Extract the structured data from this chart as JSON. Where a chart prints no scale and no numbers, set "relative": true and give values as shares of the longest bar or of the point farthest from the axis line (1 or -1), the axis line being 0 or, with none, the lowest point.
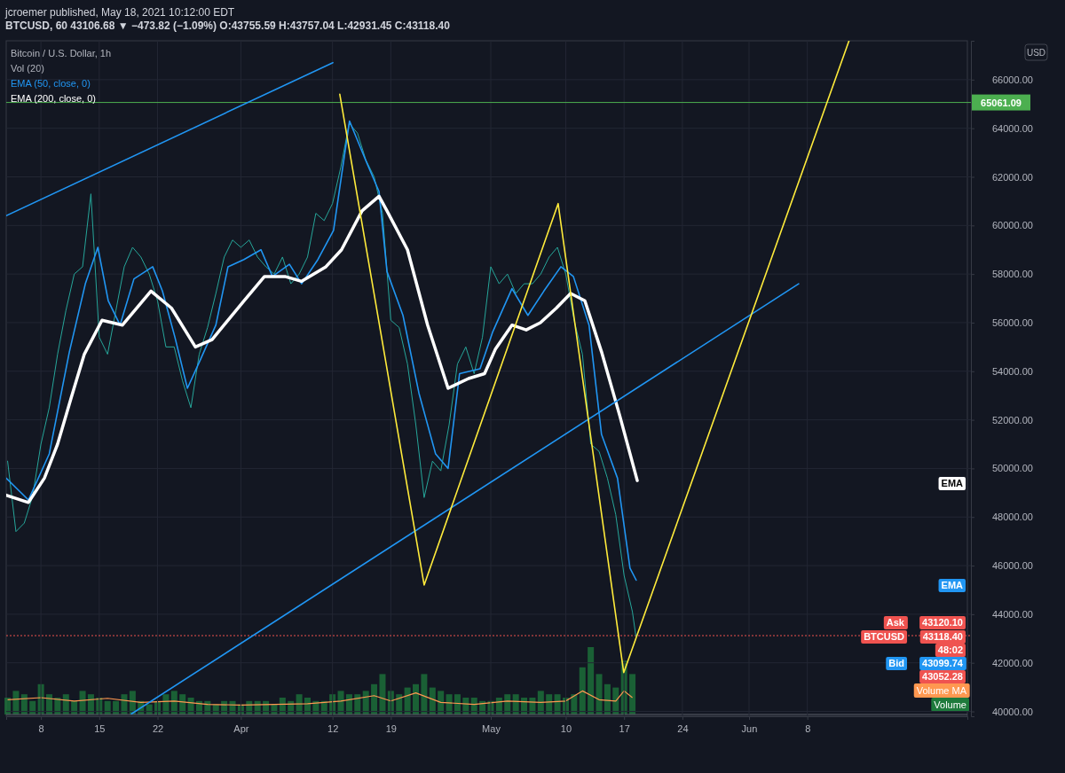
{
  "chart_data": [
    {
      "type": "line",
      "title": "Bitcoin / U.S. Dollar, 1h",
      "subtitle": "BTCUSD, 60 43106.68 ▼ −473.82 (−1.09%) O:43755.59 H:43757.04 L:42931.45 C:43118.40",
      "ylabel": "USD",
      "xlim": [
        "2021-03-03T20:00",
        "2021-06-27T05:00"
      ],
      "ylim": [
        39800,
        67600
      ],
      "xticks": [
        {
          "value": "2021-03-08",
          "label": "8"
        },
        {
          "value": "2021-03-15",
          "label": "15"
        },
        {
          "value": "2021-03-22",
          "label": "22"
        },
        {
          "value": "2021-04-01",
          "label": "Apr"
        },
        {
          "value": "2021-04-12",
          "label": "12"
        },
        {
          "value": "2021-04-19",
          "label": "19"
        },
        {
          "value": "2021-05-01",
          "label": "May"
        },
        {
          "value": "2021-05-10",
          "label": "10"
        },
        {
          "value": "2021-05-17",
          "label": "17"
        },
        {
          "value": "2021-05-24",
          "label": "24"
        },
        {
          "value": "2021-06-01",
          "label": "Jun"
        },
        {
          "value": "2021-06-08",
          "label": "8"
        }
      ],
      "yticks": [
        {
          "value": 40000,
          "label": "40000.00"
        },
        {
          "value": 42000,
          "label": "42000.00"
        },
        {
          "value": 44000,
          "label": "44000.00"
        },
        {
          "value": 46000,
          "label": "46000.00"
        },
        {
          "value": 48000,
          "label": "48000.00"
        },
        {
          "value": 50000,
          "label": "50000.00"
        },
        {
          "value": 52000,
          "label": "52000.00"
        },
        {
          "value": 54000,
          "label": "54000.00"
        },
        {
          "value": 56000,
          "label": "56000.00"
        },
        {
          "value": 58000,
          "label": "58000.00"
        },
        {
          "value": 60000,
          "label": "60000.00"
        },
        {
          "value": 62000,
          "label": "62000.00"
        },
        {
          "value": 64000,
          "label": "64000.00"
        },
        {
          "value": 66000,
          "label": "66000.00"
        }
      ],
      "grid": true,
      "legend": "top left",
      "series": [
        {
          "color": "#26a69a",
          "x": [
            "2021-03-04",
            "2021-03-05",
            "2021-03-06",
            "2021-03-07",
            "2021-03-08",
            "2021-03-09",
            "2021-03-10",
            "2021-03-11",
            "2021-03-12",
            "2021-03-13",
            "2021-03-14",
            "2021-03-15",
            "2021-03-16",
            "2021-03-17",
            "2021-03-18",
            "2021-03-19",
            "2021-03-20",
            "2021-03-21",
            "2021-03-22",
            "2021-03-23",
            "2021-03-24",
            "2021-03-25",
            "2021-03-26",
            "2021-03-27",
            "2021-03-28",
            "2021-03-29",
            "2021-03-30",
            "2021-03-31",
            "2021-04-01",
            "2021-04-02",
            "2021-04-03",
            "2021-04-04",
            "2021-04-05",
            "2021-04-06",
            "2021-04-07",
            "2021-04-08",
            "2021-04-09",
            "2021-04-10",
            "2021-04-11",
            "2021-04-12",
            "2021-04-13",
            "2021-04-14",
            "2021-04-15",
            "2021-04-16",
            "2021-04-17",
            "2021-04-18",
            "2021-04-19",
            "2021-04-20",
            "2021-04-21",
            "2021-04-22",
            "2021-04-23",
            "2021-04-24",
            "2021-04-25",
            "2021-04-26",
            "2021-04-27",
            "2021-04-28",
            "2021-04-29",
            "2021-04-30",
            "2021-05-01",
            "2021-05-02",
            "2021-05-03",
            "2021-05-04",
            "2021-05-05",
            "2021-05-06",
            "2021-05-07",
            "2021-05-08",
            "2021-05-09",
            "2021-05-10",
            "2021-05-11",
            "2021-05-12",
            "2021-05-13",
            "2021-05-14",
            "2021-05-15",
            "2021-05-16",
            "2021-05-17",
            "2021-05-18",
            "2021-05-18T10:00"
          ],
          "values": [
            50300,
            47400,
            47750,
            48850,
            51000,
            52500,
            54700,
            56500,
            58000,
            58300,
            61300,
            55400,
            54700,
            56500,
            58300,
            59100,
            58700,
            58000,
            56900,
            55000,
            55000,
            53600,
            52500,
            54700,
            55800,
            57200,
            58700,
            59400,
            59100,
            59400,
            58700,
            58300,
            58000,
            58700,
            57600,
            58000,
            58700,
            60500,
            60200,
            60900,
            62400,
            64200,
            63800,
            62700,
            62000,
            60500,
            56100,
            55800,
            54300,
            51800,
            48800,
            50300,
            49900,
            51800,
            54300,
            55000,
            53900,
            55400,
            58300,
            57600,
            58000,
            57200,
            57600,
            57600,
            58000,
            58700,
            59100,
            58000,
            56100,
            54700,
            51000,
            50700,
            49600,
            48100,
            45600,
            44100,
            43100
          ]
        },
        {
          "name": "EMA (50, close, 0)",
          "color": "#2196f3",
          "x": [
            "2021-03-03T20:00",
            "2021-03-06T12:00",
            "2021-03-09T00:00",
            "2021-03-11T10:00",
            "2021-03-13T08:00",
            "2021-03-14T20:00",
            "2021-03-16T02:00",
            "2021-03-17T12:00",
            "2021-03-19T04:00",
            "2021-03-21T10:00",
            "2021-03-22T14:00",
            "2021-03-24T02:00",
            "2021-03-25T14:00",
            "2021-03-27T01:00",
            "2021-03-29T00:00",
            "2021-03-30T11:00",
            "2021-04-01T09:00",
            "2021-04-03T10:00",
            "2021-04-04T19:00",
            "2021-04-06T20:00",
            "2021-04-08T07:00",
            "2021-04-10T06:00",
            "2021-04-12T03:00",
            "2021-04-14T01:00",
            "2021-04-16T02:00",
            "2021-04-17T14:00",
            "2021-04-18T13:00",
            "2021-04-20T11:00",
            "2021-04-22T09:00",
            "2021-04-24T09:00",
            "2021-04-25T21:00",
            "2021-04-27T06:00",
            "2021-04-29T17:00",
            "2021-05-01T05:00",
            "2021-05-03T13:00",
            "2021-05-05T11:00",
            "2021-05-07T09:00",
            "2021-05-09T10:00",
            "2021-05-10T22:00",
            "2021-05-12T19:00",
            "2021-05-14T07:00",
            "2021-05-16T05:00",
            "2021-05-17T17:00",
            "2021-05-18T11:00"
          ],
          "values": [
            49600,
            48700,
            50600,
            54800,
            57600,
            59100,
            56900,
            55900,
            57800,
            58300,
            57300,
            55400,
            53300,
            54400,
            55900,
            58300,
            58600,
            59000,
            57900,
            58400,
            57600,
            58600,
            59800,
            64300,
            62600,
            61400,
            58100,
            56300,
            53100,
            50600,
            50000,
            53900,
            54100,
            55600,
            57400,
            56300,
            57300,
            58300,
            57900,
            55900,
            51400,
            49600,
            45900,
            45400
          ]
        },
        {
          "name": "EMA (200, close, 0)",
          "color": "#ffffff",
          "x": [
            "2021-03-03T20:00",
            "2021-03-06T12:00",
            "2021-03-08T10:00",
            "2021-03-10T00:00",
            "2021-03-11T15:00",
            "2021-03-13T05:00",
            "2021-03-15T08:00",
            "2021-03-17T19:00",
            "2021-03-21T05:00",
            "2021-03-23T16:00",
            "2021-03-26T13:00",
            "2021-03-28T13:00",
            "2021-04-01T09:00",
            "2021-04-03T20:00",
            "2021-04-06T07:00",
            "2021-04-08T07:00",
            "2021-04-11T05:00",
            "2021-04-13T02:00",
            "2021-04-15T13:00",
            "2021-04-17T14:00",
            "2021-04-18T13:00",
            "2021-04-21T00:00",
            "2021-04-23T10:00",
            "2021-04-25T21:00",
            "2021-04-28T08:00",
            "2021-04-30T06:00",
            "2021-05-01T13:00",
            "2021-05-03T13:00",
            "2021-05-05T06:00",
            "2021-05-06T23:00",
            "2021-05-08T21:00",
            "2021-05-10T14:00",
            "2021-05-12T07:00",
            "2021-05-14T07:00",
            "2021-05-16T11:00",
            "2021-05-18T14:00"
          ],
          "values": [
            48900,
            48600,
            49600,
            51000,
            52900,
            54700,
            56100,
            55900,
            57300,
            56600,
            55000,
            55300,
            56900,
            57900,
            57900,
            57700,
            58300,
            59000,
            60600,
            61200,
            60600,
            59000,
            55900,
            53300,
            53700,
            53900,
            54900,
            55900,
            55700,
            56000,
            56600,
            57200,
            56900,
            54800,
            52200,
            49500
          ]
        },
        {
          "color": "#2196f3",
          "x": [
            "2021-03-03T20:00",
            "2021-04-12T01:00"
          ],
          "values": [
            60400,
            66700
          ]
        },
        {
          "color": "#2196f3",
          "x": [
            "2021-03-18T21:00",
            "2021-06-06T23:00"
          ],
          "values": [
            39900,
            57600
          ]
        },
        {
          "color": "#ffeb3b",
          "x": [
            "2021-04-12T21:00",
            "2021-04-23T00:00",
            "2021-05-09T02:00",
            "2021-05-16T23:00",
            "2021-06-13T00:00"
          ],
          "values": [
            65400,
            45200,
            60900,
            41600,
            67600
          ]
        }
      ],
      "ref_lines": [
        {
          "axis": "y",
          "value": 65061.09,
          "label": "65061.09",
          "color": "#4caf50"
        },
        {
          "axis": "y",
          "value": 43118.4,
          "color": "#ef5350",
          "line_style": "dotted"
        }
      ],
      "annotations": [
        "jcroemer published, May 18, 2021 10:12:00 EDT",
        "Ask",
        "43120.10",
        "BTCUSD",
        "43118.40",
        "48:02",
        "Bid",
        "43099.74",
        "43052.28",
        "EMA",
        "EMA"
      ]
    },
    {
      "type": "bar",
      "relative": true,
      "xlim": [
        "2021-03-03T20:00",
        "2021-06-27T05:00"
      ],
      "tick_labels": false,
      "x": [
        "2021-03-04",
        "2021-03-05",
        "2021-03-06",
        "2021-03-07",
        "2021-03-08",
        "2021-03-09",
        "2021-03-10",
        "2021-03-11",
        "2021-03-12",
        "2021-03-13",
        "2021-03-14",
        "2021-03-15",
        "2021-03-16",
        "2021-03-17",
        "2021-03-18",
        "2021-03-19",
        "2021-03-20",
        "2021-03-21",
        "2021-03-22",
        "2021-03-23",
        "2021-03-24",
        "2021-03-25",
        "2021-03-26",
        "2021-03-27",
        "2021-03-28",
        "2021-03-29",
        "2021-03-30",
        "2021-03-31",
        "2021-04-01",
        "2021-04-02",
        "2021-04-03",
        "2021-04-04",
        "2021-04-05",
        "2021-04-06",
        "2021-04-07",
        "2021-04-08",
        "2021-04-09",
        "2021-04-10",
        "2021-04-11",
        "2021-04-12",
        "2021-04-13",
        "2021-04-14",
        "2021-04-15",
        "2021-04-16",
        "2021-04-17",
        "2021-04-18",
        "2021-04-19",
        "2021-04-20",
        "2021-04-21",
        "2021-04-22",
        "2021-04-23",
        "2021-04-24",
        "2021-04-25",
        "2021-04-26",
        "2021-04-27",
        "2021-04-28",
        "2021-04-29",
        "2021-04-30",
        "2021-05-01",
        "2021-05-02",
        "2021-05-03",
        "2021-05-04",
        "2021-05-05",
        "2021-05-06",
        "2021-05-07",
        "2021-05-08",
        "2021-05-09",
        "2021-05-10",
        "2021-05-11",
        "2021-05-12",
        "2021-05-13",
        "2021-05-14",
        "2021-05-15",
        "2021-05-16",
        "2021-05-17",
        "2021-05-18"
      ],
      "series": [
        {
          "name": "Volume",
          "color": "#1e7a3c",
          "values": [
            0.25,
            0.35,
            0.3,
            0.2,
            0.45,
            0.3,
            0.25,
            0.3,
            0.2,
            0.35,
            0.3,
            0.25,
            0.2,
            0.2,
            0.3,
            0.35,
            0.2,
            0.15,
            0.2,
            0.3,
            0.35,
            0.3,
            0.25,
            0.2,
            0.2,
            0.15,
            0.2,
            0.2,
            0.15,
            0.2,
            0.2,
            0.2,
            0.15,
            0.25,
            0.2,
            0.3,
            0.25,
            0.2,
            0.2,
            0.3,
            0.35,
            0.3,
            0.3,
            0.35,
            0.45,
            0.6,
            0.35,
            0.3,
            0.4,
            0.45,
            0.6,
            0.4,
            0.35,
            0.3,
            0.3,
            0.25,
            0.25,
            0.2,
            0.2,
            0.25,
            0.3,
            0.3,
            0.25,
            0.25,
            0.35,
            0.3,
            0.3,
            0.25,
            0.3,
            0.7,
            1,
            0.6,
            0.45,
            0.4,
            0.8,
            0.6
          ]
        },
        {
          "name": "Volume MA",
          "type": "line",
          "color": "#ff9850",
          "x": [
            "2021-03-04",
            "2021-03-08",
            "2021-03-12",
            "2021-03-16",
            "2021-03-20",
            "2021-03-24",
            "2021-03-28",
            "2021-04-01",
            "2021-04-05",
            "2021-04-09",
            "2021-04-13",
            "2021-04-17",
            "2021-04-19",
            "2021-04-22",
            "2021-04-25",
            "2021-04-29",
            "2021-05-03",
            "2021-05-07",
            "2021-05-10",
            "2021-05-12",
            "2021-05-14",
            "2021-05-16",
            "2021-05-17",
            "2021-05-18"
          ],
          "values": [
            0.22,
            0.25,
            0.2,
            0.24,
            0.18,
            0.2,
            0.15,
            0.14,
            0.15,
            0.16,
            0.2,
            0.28,
            0.2,
            0.32,
            0.18,
            0.15,
            0.2,
            0.18,
            0.2,
            0.35,
            0.22,
            0.2,
            0.35,
            0.25
          ]
        }
      ],
      "annotations": [
        "Vol (20)"
      ]
    }
  ]
}
